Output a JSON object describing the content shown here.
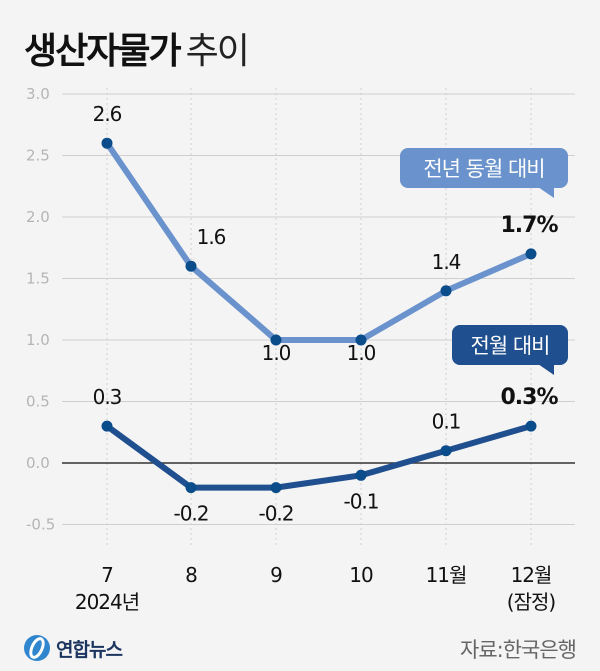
{
  "title": {
    "bold": "생산자물가",
    "light": "추이"
  },
  "source": "자료:한국은행",
  "logo": "연합뉴스",
  "colors": {
    "yoy": "#6a92cc",
    "mom": "#1f4f8f",
    "marker": "#0b4d8a",
    "zero": "#333333",
    "grid": "#cfcfcf"
  },
  "chart_data": {
    "type": "line",
    "categories": [
      "7",
      "8",
      "9",
      "10",
      "11월",
      "12월"
    ],
    "category_sublabels": [
      "2024년",
      "",
      "",
      "",
      "",
      "(잠정)"
    ],
    "yticks": [
      "3.0",
      "2.5",
      "2.0",
      "1.5",
      "1.0",
      "0.5",
      "0.0",
      "-0.5"
    ],
    "ylim": [
      -0.5,
      3.0
    ],
    "grid": true,
    "series": [
      {
        "name": "전년 동월 대비",
        "values": [
          2.6,
          1.6,
          1.0,
          1.0,
          1.4,
          1.7
        ],
        "labels": [
          "2.6",
          "1.6",
          "1.0",
          "1.0",
          "1.4",
          "1.7%"
        ]
      },
      {
        "name": "전월 대비",
        "values": [
          0.3,
          -0.2,
          -0.2,
          -0.1,
          0.1,
          0.3
        ],
        "labels": [
          "0.3",
          "-0.2",
          "-0.2",
          "-0.1",
          "0.1",
          "0.3%"
        ]
      }
    ]
  }
}
